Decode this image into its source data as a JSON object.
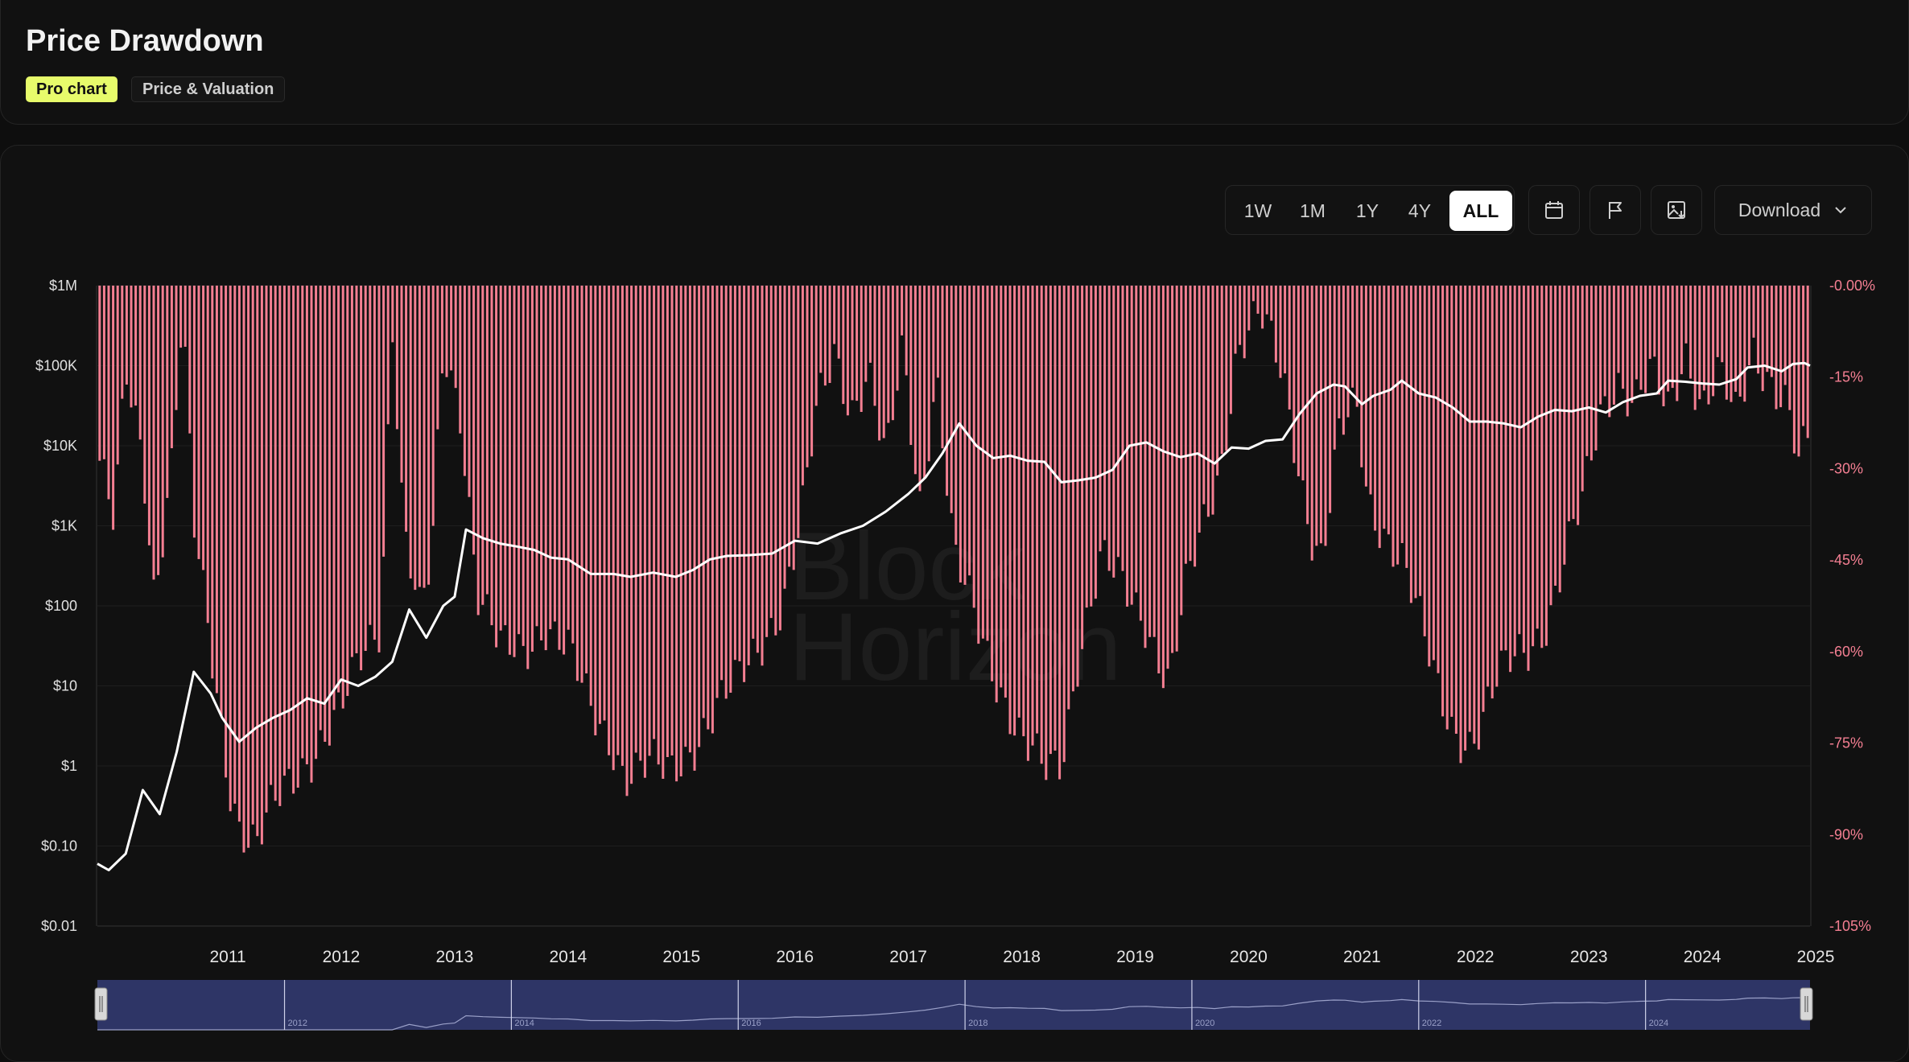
{
  "header": {
    "title": "Price Drawdown",
    "badge_pro": "Pro chart",
    "badge_category": "Price & Valuation"
  },
  "toolbar": {
    "ranges": [
      "1W",
      "1M",
      "1Y",
      "4Y",
      "ALL"
    ],
    "active_range": "ALL",
    "download_label": "Download",
    "icons": [
      "calendar-icon",
      "flag-icon",
      "image-export-icon",
      "chevron-down-icon"
    ]
  },
  "colors": {
    "background": "#111111",
    "drawdown_bars": "#f47f92",
    "price_line": "#ffffff",
    "right_axis_text": "#f47f92",
    "navigator_fill": "#2e3566",
    "badge_pro": "#e7fb6b"
  },
  "watermark": "BlockHorizon",
  "chart_data": {
    "type": "bar",
    "title": "",
    "xlabel": "",
    "ylabel_left": "",
    "ylabel_right": "",
    "x_ticks": [
      "2011",
      "2012",
      "2013",
      "2014",
      "2015",
      "2016",
      "2017",
      "2018",
      "2019",
      "2020",
      "2021",
      "2022",
      "2023",
      "2024",
      "2025"
    ],
    "y_left_ticks": [
      "$1M",
      "$100K",
      "$10K",
      "$1K",
      "$100",
      "$10",
      "$1",
      "$0.10",
      "$0.01"
    ],
    "y_left_scale": "log",
    "y_left_range": [
      0.01,
      1000000
    ],
    "y_right_ticks": [
      "-0.00%",
      "-15%",
      "-30%",
      "-45%",
      "-60%",
      "-75%",
      "-90%",
      "-105%"
    ],
    "y_right_range": [
      -105,
      0
    ],
    "x_range": [
      2010.35,
      2025.45
    ],
    "series": [
      {
        "name": "",
        "type": "bar",
        "axis": "right",
        "points": [
          [
            2010.35,
            -27
          ],
          [
            2010.5,
            -40
          ],
          [
            2010.6,
            -15
          ],
          [
            2010.75,
            -28
          ],
          [
            2010.85,
            -50
          ],
          [
            2011.0,
            -30
          ],
          [
            2011.1,
            -5
          ],
          [
            2011.2,
            -40
          ],
          [
            2011.35,
            -60
          ],
          [
            2011.5,
            -80
          ],
          [
            2011.6,
            -88
          ],
          [
            2011.75,
            -92
          ],
          [
            2011.9,
            -86
          ],
          [
            2012.1,
            -80
          ],
          [
            2012.3,
            -75
          ],
          [
            2012.5,
            -70
          ],
          [
            2012.7,
            -60
          ],
          [
            2012.85,
            -55
          ],
          [
            2012.95,
            -5
          ],
          [
            2013.05,
            -40
          ],
          [
            2013.2,
            -55
          ],
          [
            2013.3,
            -45
          ],
          [
            2013.4,
            -10
          ],
          [
            2013.55,
            -20
          ],
          [
            2013.7,
            -50
          ],
          [
            2013.9,
            -60
          ],
          [
            2014.1,
            -60
          ],
          [
            2014.3,
            -55
          ],
          [
            2014.5,
            -60
          ],
          [
            2014.7,
            -70
          ],
          [
            2014.9,
            -75
          ],
          [
            2015.0,
            -80
          ],
          [
            2015.2,
            -79
          ],
          [
            2015.4,
            -80
          ],
          [
            2015.6,
            -75
          ],
          [
            2015.8,
            -70
          ],
          [
            2016.0,
            -65
          ],
          [
            2016.2,
            -58
          ],
          [
            2016.4,
            -52
          ],
          [
            2016.55,
            -40
          ],
          [
            2016.7,
            -20
          ],
          [
            2016.85,
            -10
          ],
          [
            2017.0,
            -20
          ],
          [
            2017.15,
            -15
          ],
          [
            2017.3,
            -30
          ],
          [
            2017.45,
            -10
          ],
          [
            2017.6,
            -35
          ],
          [
            2017.75,
            -15
          ],
          [
            2017.9,
            -45
          ],
          [
            2018.1,
            -55
          ],
          [
            2018.3,
            -65
          ],
          [
            2018.5,
            -75
          ],
          [
            2018.7,
            -80
          ],
          [
            2018.85,
            -78
          ],
          [
            2019.0,
            -60
          ],
          [
            2019.2,
            -45
          ],
          [
            2019.4,
            -50
          ],
          [
            2019.6,
            -55
          ],
          [
            2019.8,
            -65
          ],
          [
            2019.95,
            -50
          ],
          [
            2020.1,
            -40
          ],
          [
            2020.25,
            -30
          ],
          [
            2020.4,
            -10
          ],
          [
            2020.6,
            -5
          ],
          [
            2020.8,
            -15
          ],
          [
            2020.95,
            -30
          ],
          [
            2021.05,
            -40
          ],
          [
            2021.15,
            -45
          ],
          [
            2021.3,
            -25
          ],
          [
            2021.45,
            -20
          ],
          [
            2021.55,
            -35
          ],
          [
            2021.7,
            -40
          ],
          [
            2021.85,
            -45
          ],
          [
            2022.0,
            -55
          ],
          [
            2022.15,
            -65
          ],
          [
            2022.3,
            -72
          ],
          [
            2022.45,
            -75
          ],
          [
            2022.55,
            -73
          ],
          [
            2022.7,
            -65
          ],
          [
            2022.85,
            -60
          ],
          [
            2023.0,
            -58
          ],
          [
            2023.15,
            -55
          ],
          [
            2023.3,
            -45
          ],
          [
            2023.45,
            -35
          ],
          [
            2023.6,
            -20
          ],
          [
            2023.75,
            -15
          ],
          [
            2023.9,
            -20
          ],
          [
            2024.05,
            -15
          ],
          [
            2024.2,
            -20
          ],
          [
            2024.35,
            -10
          ],
          [
            2024.5,
            -20
          ],
          [
            2024.65,
            -15
          ],
          [
            2024.8,
            -22
          ],
          [
            2024.95,
            -10
          ],
          [
            2025.1,
            -15
          ],
          [
            2025.25,
            -20
          ],
          [
            2025.35,
            -30
          ],
          [
            2025.45,
            -25
          ]
        ]
      },
      {
        "name": "",
        "type": "line",
        "axis": "left",
        "points": [
          [
            2010.35,
            0.06
          ],
          [
            2010.45,
            0.05
          ],
          [
            2010.6,
            0.08
          ],
          [
            2010.75,
            0.5
          ],
          [
            2010.9,
            0.25
          ],
          [
            2011.05,
            1.5
          ],
          [
            2011.2,
            15
          ],
          [
            2011.35,
            8
          ],
          [
            2011.45,
            4
          ],
          [
            2011.6,
            2
          ],
          [
            2011.75,
            3
          ],
          [
            2011.9,
            4
          ],
          [
            2012.05,
            5
          ],
          [
            2012.2,
            7
          ],
          [
            2012.35,
            6
          ],
          [
            2012.5,
            12
          ],
          [
            2012.65,
            10
          ],
          [
            2012.8,
            13
          ],
          [
            2012.95,
            20
          ],
          [
            2013.1,
            90
          ],
          [
            2013.25,
            40
          ],
          [
            2013.4,
            100
          ],
          [
            2013.5,
            130
          ],
          [
            2013.6,
            900
          ],
          [
            2013.75,
            700
          ],
          [
            2013.9,
            600
          ],
          [
            2014.05,
            550
          ],
          [
            2014.2,
            500
          ],
          [
            2014.35,
            400
          ],
          [
            2014.5,
            380
          ],
          [
            2014.7,
            250
          ],
          [
            2014.9,
            250
          ],
          [
            2015.05,
            230
          ],
          [
            2015.25,
            260
          ],
          [
            2015.45,
            230
          ],
          [
            2015.6,
            280
          ],
          [
            2015.75,
            380
          ],
          [
            2015.9,
            420
          ],
          [
            2016.1,
            430
          ],
          [
            2016.3,
            450
          ],
          [
            2016.5,
            650
          ],
          [
            2016.7,
            600
          ],
          [
            2016.9,
            800
          ],
          [
            2017.1,
            1000
          ],
          [
            2017.3,
            1500
          ],
          [
            2017.5,
            2500
          ],
          [
            2017.65,
            4000
          ],
          [
            2017.8,
            8000
          ],
          [
            2017.95,
            19000
          ],
          [
            2018.1,
            10000
          ],
          [
            2018.25,
            7000
          ],
          [
            2018.4,
            7500
          ],
          [
            2018.55,
            6500
          ],
          [
            2018.7,
            6300
          ],
          [
            2018.85,
            3500
          ],
          [
            2019.0,
            3700
          ],
          [
            2019.15,
            4000
          ],
          [
            2019.3,
            5000
          ],
          [
            2019.45,
            10000
          ],
          [
            2019.6,
            11000
          ],
          [
            2019.75,
            8500
          ],
          [
            2019.9,
            7200
          ],
          [
            2020.05,
            8000
          ],
          [
            2020.2,
            6000
          ],
          [
            2020.35,
            9500
          ],
          [
            2020.5,
            9200
          ],
          [
            2020.65,
            11500
          ],
          [
            2020.8,
            12000
          ],
          [
            2020.95,
            25000
          ],
          [
            2021.1,
            45000
          ],
          [
            2021.25,
            58000
          ],
          [
            2021.35,
            55000
          ],
          [
            2021.5,
            33000
          ],
          [
            2021.6,
            42000
          ],
          [
            2021.75,
            50000
          ],
          [
            2021.85,
            65000
          ],
          [
            2022.0,
            45000
          ],
          [
            2022.15,
            40000
          ],
          [
            2022.3,
            30000
          ],
          [
            2022.45,
            20000
          ],
          [
            2022.6,
            20000
          ],
          [
            2022.75,
            19000
          ],
          [
            2022.9,
            17000
          ],
          [
            2023.05,
            23000
          ],
          [
            2023.2,
            28000
          ],
          [
            2023.35,
            27000
          ],
          [
            2023.5,
            30000
          ],
          [
            2023.65,
            26000
          ],
          [
            2023.8,
            35000
          ],
          [
            2023.95,
            42000
          ],
          [
            2024.1,
            45000
          ],
          [
            2024.2,
            65000
          ],
          [
            2024.35,
            63000
          ],
          [
            2024.5,
            60000
          ],
          [
            2024.65,
            58000
          ],
          [
            2024.8,
            68000
          ],
          [
            2024.9,
            95000
          ],
          [
            2025.05,
            100000
          ],
          [
            2025.2,
            85000
          ],
          [
            2025.3,
            105000
          ],
          [
            2025.4,
            108000
          ],
          [
            2025.45,
            100000
          ]
        ]
      }
    ],
    "grid": true,
    "legend": "none"
  },
  "navigator": {
    "labels": [
      "2012",
      "2014",
      "2016",
      "2018",
      "2020",
      "2022",
      "2024"
    ]
  }
}
